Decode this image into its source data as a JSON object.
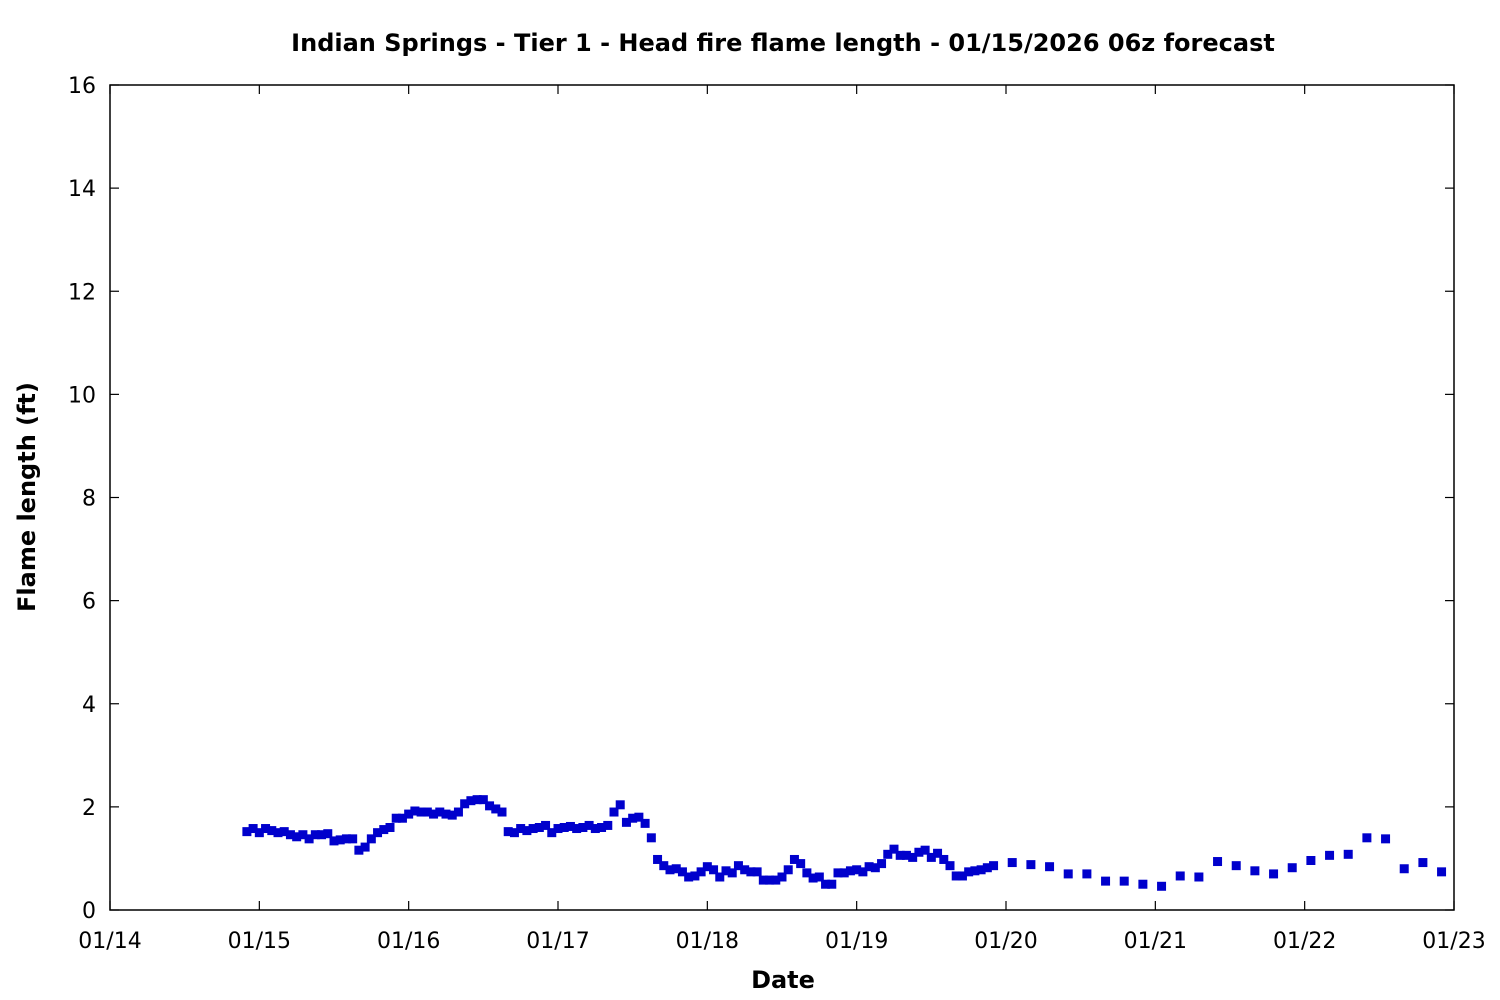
{
  "chart_data": {
    "type": "scatter",
    "title": "Indian Springs - Tier 1 - Head fire flame length - 01/15/2026 06z forecast",
    "xlabel": "Date",
    "ylabel": "Flame length (ft)",
    "x_ticks": [
      "01/14",
      "01/15",
      "01/16",
      "01/17",
      "01/18",
      "01/19",
      "01/20",
      "01/21",
      "01/22",
      "01/23"
    ],
    "xlim": [
      "2026-01-14T00:00",
      "2026-01-23T00:00"
    ],
    "y_ticks": [
      0,
      2,
      4,
      6,
      8,
      10,
      12,
      14,
      16
    ],
    "ylim": [
      0,
      16
    ],
    "grid": false,
    "marker_color": "#0000cc",
    "marker": "square",
    "series": [
      {
        "points": [
          [
            "2026-01-14T22:00",
            1.52
          ],
          [
            "2026-01-14T23:00",
            1.58
          ],
          [
            "2026-01-15T00:00",
            1.5
          ],
          [
            "2026-01-15T01:00",
            1.58
          ],
          [
            "2026-01-15T02:00",
            1.54
          ],
          [
            "2026-01-15T03:00",
            1.5
          ],
          [
            "2026-01-15T04:00",
            1.52
          ],
          [
            "2026-01-15T05:00",
            1.46
          ],
          [
            "2026-01-15T06:00",
            1.42
          ],
          [
            "2026-01-15T07:00",
            1.46
          ],
          [
            "2026-01-15T08:00",
            1.38
          ],
          [
            "2026-01-15T09:00",
            1.46
          ],
          [
            "2026-01-15T10:00",
            1.46
          ],
          [
            "2026-01-15T11:00",
            1.48
          ],
          [
            "2026-01-15T12:00",
            1.34
          ],
          [
            "2026-01-15T13:00",
            1.36
          ],
          [
            "2026-01-15T14:00",
            1.38
          ],
          [
            "2026-01-15T15:00",
            1.38
          ],
          [
            "2026-01-15T16:00",
            1.16
          ],
          [
            "2026-01-15T17:00",
            1.22
          ],
          [
            "2026-01-15T18:00",
            1.38
          ],
          [
            "2026-01-15T19:00",
            1.5
          ],
          [
            "2026-01-15T20:00",
            1.56
          ],
          [
            "2026-01-15T21:00",
            1.6
          ],
          [
            "2026-01-15T22:00",
            1.78
          ],
          [
            "2026-01-15T23:00",
            1.78
          ],
          [
            "2026-01-16T00:00",
            1.86
          ],
          [
            "2026-01-16T01:00",
            1.92
          ],
          [
            "2026-01-16T02:00",
            1.9
          ],
          [
            "2026-01-16T03:00",
            1.9
          ],
          [
            "2026-01-16T04:00",
            1.86
          ],
          [
            "2026-01-16T05:00",
            1.9
          ],
          [
            "2026-01-16T06:00",
            1.86
          ],
          [
            "2026-01-16T07:00",
            1.84
          ],
          [
            "2026-01-16T08:00",
            1.9
          ],
          [
            "2026-01-16T09:00",
            2.06
          ],
          [
            "2026-01-16T10:00",
            2.12
          ],
          [
            "2026-01-16T11:00",
            2.14
          ],
          [
            "2026-01-16T12:00",
            2.14
          ],
          [
            "2026-01-16T13:00",
            2.02
          ],
          [
            "2026-01-16T14:00",
            1.96
          ],
          [
            "2026-01-16T15:00",
            1.9
          ],
          [
            "2026-01-16T16:00",
            1.52
          ],
          [
            "2026-01-16T17:00",
            1.5
          ],
          [
            "2026-01-16T18:00",
            1.58
          ],
          [
            "2026-01-16T19:00",
            1.54
          ],
          [
            "2026-01-16T20:00",
            1.58
          ],
          [
            "2026-01-16T21:00",
            1.6
          ],
          [
            "2026-01-16T22:00",
            1.64
          ],
          [
            "2026-01-16T23:00",
            1.5
          ],
          [
            "2026-01-17T00:00",
            1.58
          ],
          [
            "2026-01-17T01:00",
            1.6
          ],
          [
            "2026-01-17T02:00",
            1.62
          ],
          [
            "2026-01-17T03:00",
            1.58
          ],
          [
            "2026-01-17T04:00",
            1.6
          ],
          [
            "2026-01-17T05:00",
            1.64
          ],
          [
            "2026-01-17T06:00",
            1.58
          ],
          [
            "2026-01-17T07:00",
            1.6
          ],
          [
            "2026-01-17T08:00",
            1.64
          ],
          [
            "2026-01-17T09:00",
            1.9
          ],
          [
            "2026-01-17T10:00",
            2.04
          ],
          [
            "2026-01-17T11:00",
            1.7
          ],
          [
            "2026-01-17T12:00",
            1.78
          ],
          [
            "2026-01-17T13:00",
            1.8
          ],
          [
            "2026-01-17T14:00",
            1.68
          ],
          [
            "2026-01-17T15:00",
            1.4
          ],
          [
            "2026-01-17T16:00",
            0.98
          ],
          [
            "2026-01-17T17:00",
            0.86
          ],
          [
            "2026-01-17T18:00",
            0.78
          ],
          [
            "2026-01-17T19:00",
            0.8
          ],
          [
            "2026-01-17T20:00",
            0.74
          ],
          [
            "2026-01-17T21:00",
            0.64
          ],
          [
            "2026-01-17T22:00",
            0.66
          ],
          [
            "2026-01-17T23:00",
            0.74
          ],
          [
            "2026-01-18T00:00",
            0.84
          ],
          [
            "2026-01-18T01:00",
            0.78
          ],
          [
            "2026-01-18T02:00",
            0.64
          ],
          [
            "2026-01-18T03:00",
            0.76
          ],
          [
            "2026-01-18T04:00",
            0.72
          ],
          [
            "2026-01-18T05:00",
            0.86
          ],
          [
            "2026-01-18T06:00",
            0.78
          ],
          [
            "2026-01-18T07:00",
            0.74
          ],
          [
            "2026-01-18T08:00",
            0.74
          ],
          [
            "2026-01-18T09:00",
            0.58
          ],
          [
            "2026-01-18T10:00",
            0.58
          ],
          [
            "2026-01-18T11:00",
            0.58
          ],
          [
            "2026-01-18T12:00",
            0.64
          ],
          [
            "2026-01-18T13:00",
            0.78
          ],
          [
            "2026-01-18T14:00",
            0.98
          ],
          [
            "2026-01-18T15:00",
            0.9
          ],
          [
            "2026-01-18T16:00",
            0.72
          ],
          [
            "2026-01-18T17:00",
            0.62
          ],
          [
            "2026-01-18T18:00",
            0.64
          ],
          [
            "2026-01-18T19:00",
            0.5
          ],
          [
            "2026-01-18T20:00",
            0.5
          ],
          [
            "2026-01-18T21:00",
            0.72
          ],
          [
            "2026-01-18T22:00",
            0.72
          ],
          [
            "2026-01-18T23:00",
            0.76
          ],
          [
            "2026-01-19T00:00",
            0.78
          ],
          [
            "2026-01-19T01:00",
            0.74
          ],
          [
            "2026-01-19T02:00",
            0.84
          ],
          [
            "2026-01-19T03:00",
            0.82
          ],
          [
            "2026-01-19T04:00",
            0.9
          ],
          [
            "2026-01-19T05:00",
            1.08
          ],
          [
            "2026-01-19T06:00",
            1.18
          ],
          [
            "2026-01-19T07:00",
            1.06
          ],
          [
            "2026-01-19T08:00",
            1.06
          ],
          [
            "2026-01-19T09:00",
            1.02
          ],
          [
            "2026-01-19T10:00",
            1.12
          ],
          [
            "2026-01-19T11:00",
            1.16
          ],
          [
            "2026-01-19T12:00",
            1.02
          ],
          [
            "2026-01-19T13:00",
            1.1
          ],
          [
            "2026-01-19T14:00",
            0.98
          ],
          [
            "2026-01-19T15:00",
            0.86
          ],
          [
            "2026-01-19T16:00",
            0.66
          ],
          [
            "2026-01-19T17:00",
            0.66
          ],
          [
            "2026-01-19T18:00",
            0.74
          ],
          [
            "2026-01-19T19:00",
            0.76
          ],
          [
            "2026-01-19T20:00",
            0.78
          ],
          [
            "2026-01-19T21:00",
            0.82
          ],
          [
            "2026-01-19T22:00",
            0.86
          ],
          [
            "2026-01-20T01:00",
            0.92
          ],
          [
            "2026-01-20T04:00",
            0.88
          ],
          [
            "2026-01-20T07:00",
            0.84
          ],
          [
            "2026-01-20T10:00",
            0.7
          ],
          [
            "2026-01-20T13:00",
            0.7
          ],
          [
            "2026-01-20T16:00",
            0.56
          ],
          [
            "2026-01-20T19:00",
            0.56
          ],
          [
            "2026-01-20T22:00",
            0.5
          ],
          [
            "2026-01-21T01:00",
            0.46
          ],
          [
            "2026-01-21T04:00",
            0.66
          ],
          [
            "2026-01-21T07:00",
            0.64
          ],
          [
            "2026-01-21T10:00",
            0.94
          ],
          [
            "2026-01-21T13:00",
            0.86
          ],
          [
            "2026-01-21T16:00",
            0.76
          ],
          [
            "2026-01-21T19:00",
            0.7
          ],
          [
            "2026-01-21T22:00",
            0.82
          ],
          [
            "2026-01-22T01:00",
            0.96
          ],
          [
            "2026-01-22T04:00",
            1.06
          ],
          [
            "2026-01-22T07:00",
            1.08
          ],
          [
            "2026-01-22T10:00",
            1.4
          ],
          [
            "2026-01-22T13:00",
            1.38
          ],
          [
            "2026-01-22T16:00",
            0.8
          ],
          [
            "2026-01-22T19:00",
            0.92
          ],
          [
            "2026-01-22T22:00",
            0.74
          ]
        ]
      }
    ]
  }
}
